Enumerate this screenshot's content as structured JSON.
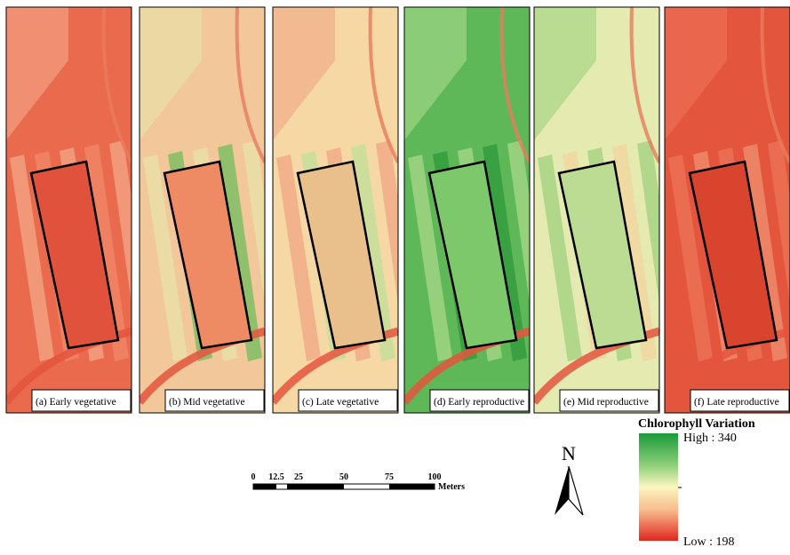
{
  "panels": [
    {
      "label": "(a) Early vegetative"
    },
    {
      "label": "(b) Mid vegetative"
    },
    {
      "label": "(c) Late vegetative"
    },
    {
      "label": "(d) Early reproductive"
    },
    {
      "label": "(e) Mid reproductive"
    },
    {
      "label": "(f) Late reproductive"
    }
  ],
  "scale_bar": {
    "ticks": [
      "0",
      "12.5",
      "25",
      "50",
      "75",
      "100"
    ],
    "unit": "Meters"
  },
  "north_arrow": "N",
  "legend": {
    "title": "Chlorophyll Variation",
    "high": "High : 340",
    "low": "Low : 198"
  }
}
